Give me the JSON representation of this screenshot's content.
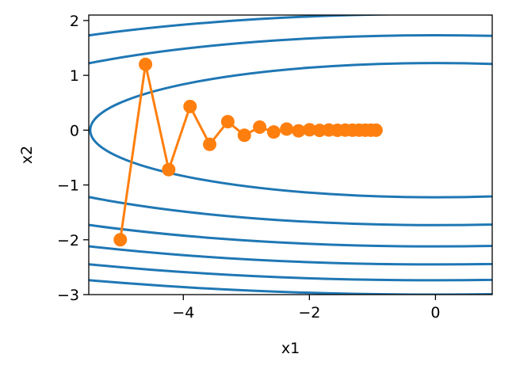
{
  "chart_data": {
    "type": "line",
    "title": "",
    "xlabel": "x1",
    "ylabel": "x2",
    "xlim": [
      -5.5,
      0.9
    ],
    "ylim": [
      -3.0,
      2.1
    ],
    "grid": false,
    "legend": "none",
    "xticks": [
      {
        "value": -4,
        "label": "−4"
      },
      {
        "value": -2,
        "label": "−2"
      },
      {
        "value": 0,
        "label": "0"
      }
    ],
    "yticks": [
      {
        "value": 2,
        "label": "2"
      },
      {
        "value": 1,
        "label": "1"
      },
      {
        "value": 0,
        "label": "0"
      },
      {
        "value": -1,
        "label": "−1"
      },
      {
        "value": -2,
        "label": "−2"
      },
      {
        "value": -3,
        "label": "−3"
      }
    ],
    "contour": {
      "function": "0.1*x1^2 + 2*x2^2",
      "levels": [
        3,
        6,
        9,
        12,
        15,
        18
      ],
      "color": "#1f77b4"
    },
    "series": [
      {
        "color": "#ff7f0e",
        "marker": "circle",
        "points": [
          [
            -5.0,
            -2.0
          ],
          [
            -4.6,
            1.2
          ],
          [
            -4.232,
            -0.72
          ],
          [
            -3.8934,
            0.432
          ],
          [
            -3.5819,
            -0.2592
          ],
          [
            -3.2953,
            0.1555
          ],
          [
            -3.0317,
            -0.0933
          ],
          [
            -2.7891,
            0.056
          ],
          [
            -2.566,
            -0.0336
          ],
          [
            -2.3607,
            0.0202
          ],
          [
            -2.1719,
            -0.0121
          ],
          [
            -1.9981,
            0.0073
          ],
          [
            -1.8383,
            -0.0044
          ],
          [
            -1.6912,
            0.0026
          ],
          [
            -1.5559,
            -0.0016
          ],
          [
            -1.4314,
            0.0009
          ],
          [
            -1.3169,
            -0.0006
          ],
          [
            -1.2116,
            0.0003
          ],
          [
            -1.1146,
            -0.0002
          ],
          [
            -1.0254,
            0.0001
          ],
          [
            -0.9434,
            -0.0001
          ]
        ]
      }
    ]
  }
}
